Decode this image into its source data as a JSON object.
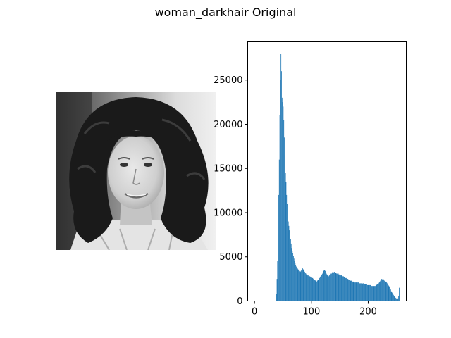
{
  "figure": {
    "title": "woman_darkhair Original"
  },
  "image_panel": {
    "subject": "grayscale portrait photograph of a woman with dark curly hair",
    "icon": "portrait-photo"
  },
  "chart_data": {
    "type": "histogram",
    "title": "",
    "xlabel": "",
    "ylabel": "",
    "xlim": [
      -12,
      267
    ],
    "ylim": [
      0,
      29400
    ],
    "xticks": [
      0,
      100,
      200
    ],
    "yticks": [
      0,
      5000,
      10000,
      15000,
      20000,
      25000
    ],
    "bar_color": "#1f77b4",
    "grid": false,
    "series": [
      {
        "bins": [
          [
            37,
            200
          ],
          [
            38,
            800
          ],
          [
            39,
            2500
          ],
          [
            40,
            4500
          ],
          [
            41,
            7500
          ],
          [
            42,
            12000
          ],
          [
            43,
            16000
          ],
          [
            44,
            21000
          ],
          [
            45,
            25000
          ],
          [
            46,
            28000
          ],
          [
            47,
            26000
          ],
          [
            48,
            23000
          ],
          [
            49,
            22500
          ],
          [
            50,
            22000
          ],
          [
            51,
            20500
          ],
          [
            52,
            18500
          ],
          [
            53,
            16500
          ],
          [
            54,
            14500
          ],
          [
            55,
            13500
          ],
          [
            56,
            12000
          ],
          [
            57,
            11000
          ],
          [
            58,
            10000
          ],
          [
            59,
            9000
          ],
          [
            60,
            8500
          ],
          [
            61,
            8000
          ],
          [
            62,
            7500
          ],
          [
            63,
            7000
          ],
          [
            64,
            6500
          ],
          [
            65,
            6000
          ],
          [
            66,
            5700
          ],
          [
            67,
            5400
          ],
          [
            68,
            5100
          ],
          [
            69,
            4800
          ],
          [
            70,
            4500
          ],
          [
            71,
            4300
          ],
          [
            72,
            4100
          ],
          [
            73,
            3900
          ],
          [
            74,
            3800
          ],
          [
            75,
            3700
          ],
          [
            76,
            3600
          ],
          [
            77,
            3500
          ],
          [
            78,
            3500
          ],
          [
            79,
            3400
          ],
          [
            80,
            3300
          ],
          [
            81,
            3400
          ],
          [
            82,
            3500
          ],
          [
            83,
            3600
          ],
          [
            84,
            3700
          ],
          [
            85,
            3600
          ],
          [
            86,
            3500
          ],
          [
            87,
            3400
          ],
          [
            88,
            3300
          ],
          [
            89,
            3200
          ],
          [
            90,
            3100
          ],
          [
            91,
            3000
          ],
          [
            92,
            3000
          ],
          [
            93,
            2900
          ],
          [
            94,
            2900
          ],
          [
            95,
            2800
          ],
          [
            96,
            2800
          ],
          [
            97,
            2800
          ],
          [
            98,
            2700
          ],
          [
            99,
            2700
          ],
          [
            100,
            2700
          ],
          [
            101,
            2600
          ],
          [
            102,
            2600
          ],
          [
            103,
            2500
          ],
          [
            104,
            2500
          ],
          [
            105,
            2400
          ],
          [
            106,
            2400
          ],
          [
            107,
            2300
          ],
          [
            108,
            2300
          ],
          [
            109,
            2200
          ],
          [
            110,
            2300
          ],
          [
            111,
            2400
          ],
          [
            112,
            2400
          ],
          [
            113,
            2500
          ],
          [
            114,
            2600
          ],
          [
            115,
            2700
          ],
          [
            116,
            2800
          ],
          [
            117,
            2900
          ],
          [
            118,
            3000
          ],
          [
            119,
            3100
          ],
          [
            120,
            3300
          ],
          [
            121,
            3400
          ],
          [
            122,
            3500
          ],
          [
            123,
            3500
          ],
          [
            124,
            3400
          ],
          [
            125,
            3300
          ],
          [
            126,
            3100
          ],
          [
            127,
            3000
          ],
          [
            128,
            2900
          ],
          [
            129,
            2800
          ],
          [
            130,
            2800
          ],
          [
            131,
            2900
          ],
          [
            132,
            2900
          ],
          [
            133,
            3000
          ],
          [
            134,
            3100
          ],
          [
            135,
            3100
          ],
          [
            136,
            3200
          ],
          [
            137,
            3300
          ],
          [
            138,
            3300
          ],
          [
            139,
            3200
          ],
          [
            140,
            3300
          ],
          [
            141,
            3300
          ],
          [
            142,
            3200
          ],
          [
            143,
            3200
          ],
          [
            144,
            3100
          ],
          [
            145,
            3100
          ],
          [
            146,
            3100
          ],
          [
            147,
            3100
          ],
          [
            148,
            3000
          ],
          [
            149,
            3000
          ],
          [
            150,
            3000
          ],
          [
            151,
            2900
          ],
          [
            152,
            2900
          ],
          [
            153,
            2900
          ],
          [
            154,
            2800
          ],
          [
            155,
            2800
          ],
          [
            156,
            2800
          ],
          [
            157,
            2700
          ],
          [
            158,
            2700
          ],
          [
            159,
            2600
          ],
          [
            160,
            2600
          ],
          [
            161,
            2600
          ],
          [
            162,
            2500
          ],
          [
            163,
            2500
          ],
          [
            164,
            2500
          ],
          [
            165,
            2400
          ],
          [
            166,
            2400
          ],
          [
            167,
            2400
          ],
          [
            168,
            2300
          ],
          [
            169,
            2300
          ],
          [
            170,
            2300
          ],
          [
            171,
            2200
          ],
          [
            172,
            2200
          ],
          [
            173,
            2200
          ],
          [
            174,
            2200
          ],
          [
            175,
            2100
          ],
          [
            176,
            2100
          ],
          [
            177,
            2100
          ],
          [
            178,
            2100
          ],
          [
            179,
            2100
          ],
          [
            180,
            2000
          ],
          [
            181,
            2100
          ],
          [
            182,
            2100
          ],
          [
            183,
            2100
          ],
          [
            184,
            2000
          ],
          [
            185,
            2000
          ],
          [
            186,
            2000
          ],
          [
            187,
            2000
          ],
          [
            188,
            2000
          ],
          [
            189,
            1900
          ],
          [
            190,
            2000
          ],
          [
            191,
            2000
          ],
          [
            192,
            1900
          ],
          [
            193,
            1900
          ],
          [
            194,
            1900
          ],
          [
            195,
            1900
          ],
          [
            196,
            1900
          ],
          [
            197,
            1900
          ],
          [
            198,
            1800
          ],
          [
            199,
            1800
          ],
          [
            200,
            1800
          ],
          [
            201,
            1800
          ],
          [
            202,
            1800
          ],
          [
            203,
            1800
          ],
          [
            204,
            1800
          ],
          [
            205,
            1700
          ],
          [
            206,
            1700
          ],
          [
            207,
            1700
          ],
          [
            208,
            1700
          ],
          [
            209,
            1700
          ],
          [
            210,
            1700
          ],
          [
            211,
            1700
          ],
          [
            212,
            1700
          ],
          [
            213,
            1800
          ],
          [
            214,
            1800
          ],
          [
            215,
            1900
          ],
          [
            216,
            1900
          ],
          [
            217,
            2000
          ],
          [
            218,
            2000
          ],
          [
            219,
            2100
          ],
          [
            220,
            2200
          ],
          [
            221,
            2300
          ],
          [
            222,
            2400
          ],
          [
            223,
            2500
          ],
          [
            224,
            2400
          ],
          [
            225,
            2500
          ],
          [
            226,
            2500
          ],
          [
            227,
            2400
          ],
          [
            228,
            2300
          ],
          [
            229,
            2300
          ],
          [
            230,
            2200
          ],
          [
            231,
            2200
          ],
          [
            232,
            2100
          ],
          [
            233,
            2000
          ],
          [
            234,
            1900
          ],
          [
            235,
            1800
          ],
          [
            236,
            1700
          ],
          [
            237,
            1600
          ],
          [
            238,
            1400
          ],
          [
            239,
            1300
          ],
          [
            240,
            1100
          ],
          [
            241,
            1000
          ],
          [
            242,
            900
          ],
          [
            243,
            800
          ],
          [
            244,
            700
          ],
          [
            245,
            600
          ],
          [
            246,
            500
          ],
          [
            247,
            400
          ],
          [
            248,
            350
          ],
          [
            249,
            300
          ],
          [
            250,
            250
          ],
          [
            251,
            250
          ],
          [
            252,
            300
          ],
          [
            253,
            600
          ],
          [
            254,
            1500
          ],
          [
            255,
            600
          ]
        ]
      }
    ]
  }
}
